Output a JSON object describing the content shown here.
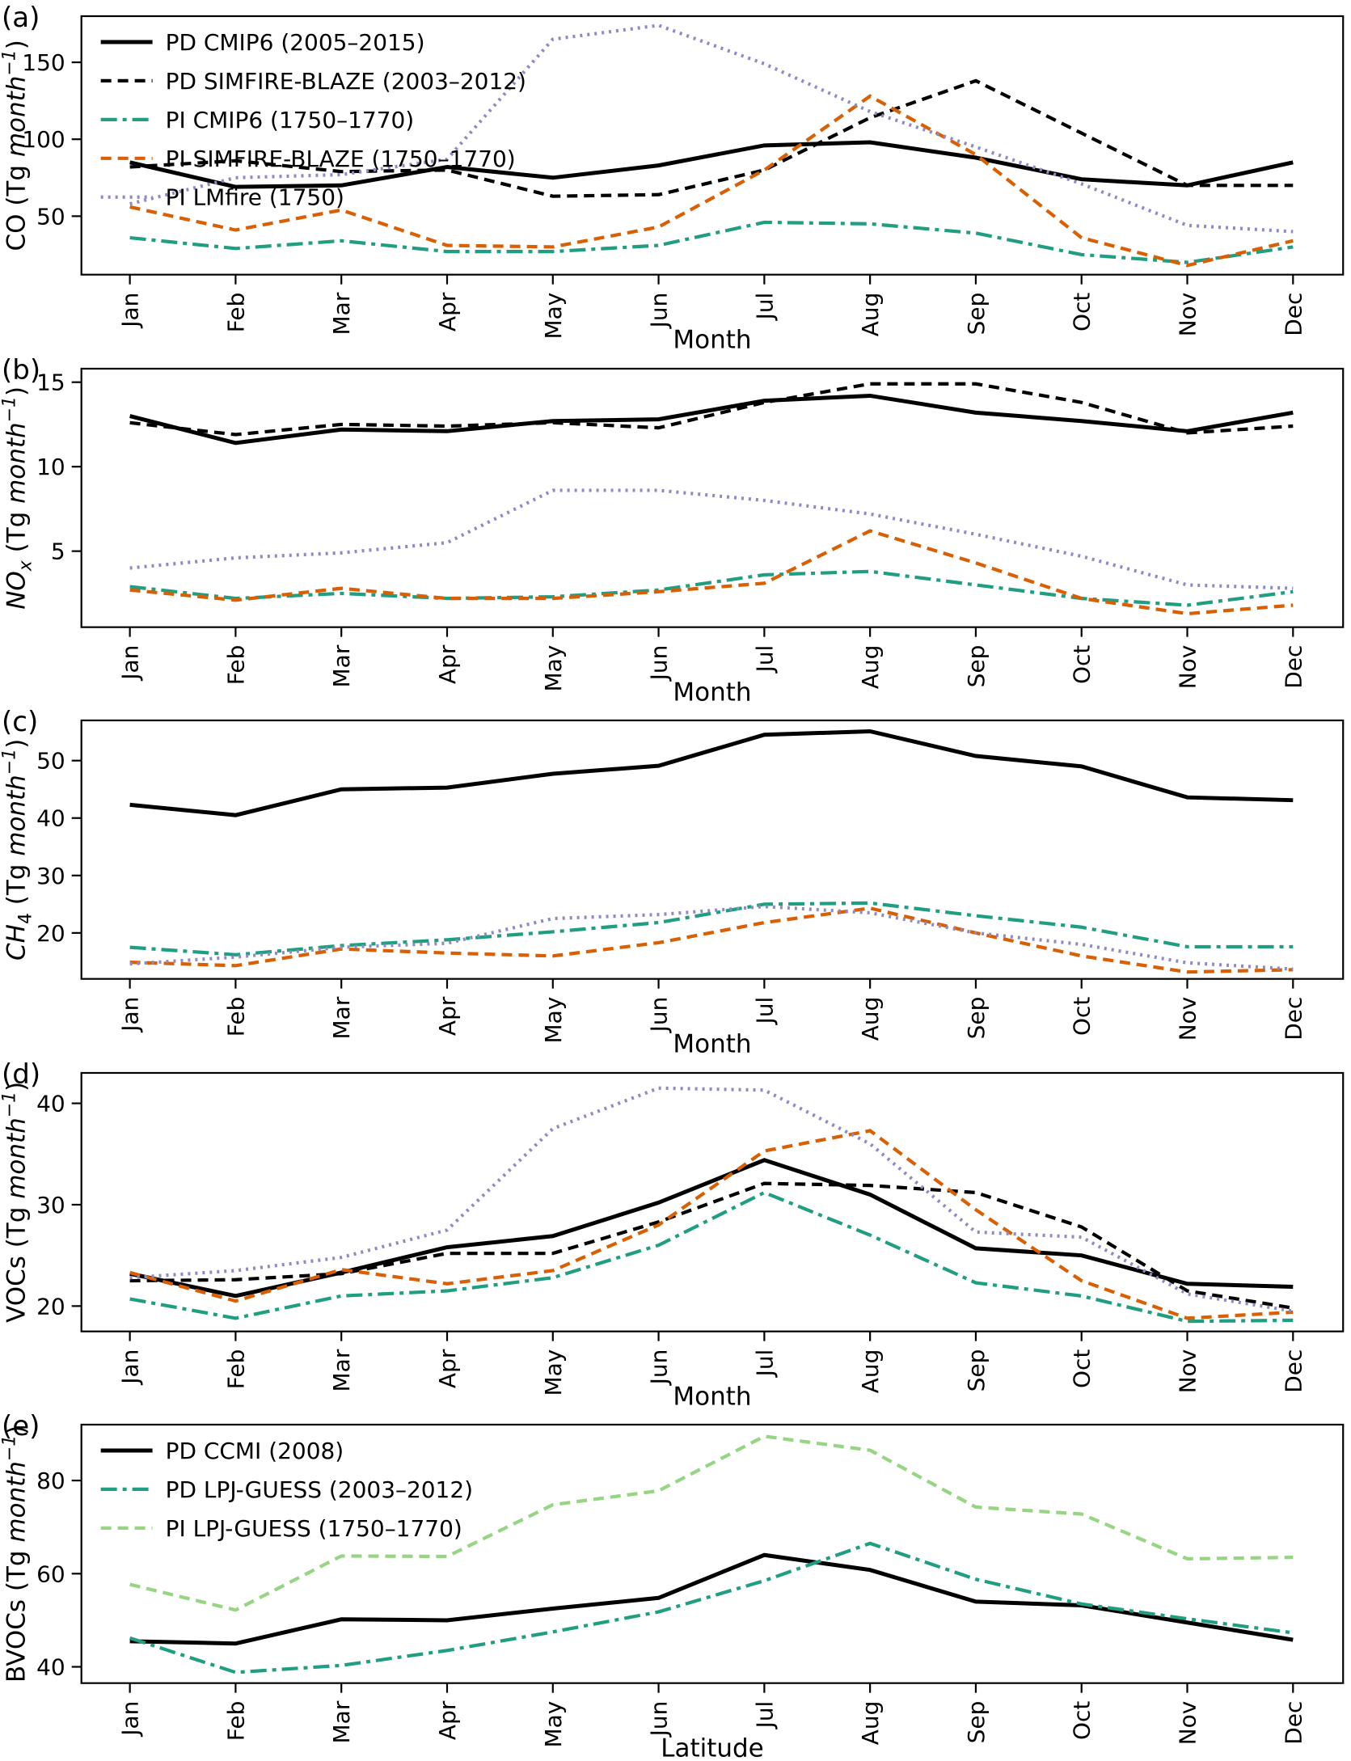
{
  "page": {
    "background": "#ffffff",
    "text_color": "#000000"
  },
  "months": [
    "Jan",
    "Feb",
    "Mar",
    "Apr",
    "May",
    "Jun",
    "Jul",
    "Aug",
    "Sep",
    "Oct",
    "Nov",
    "Dec"
  ],
  "palette": {
    "pd_solid_black": "#000000",
    "pd_dashed_black": "#000000",
    "pi_teal": "#1f9e81",
    "pi_orange": "#d95f02",
    "pi_purple": "#8f8ac6",
    "pi_lightgreen": "#97d584"
  },
  "chart_data": [
    {
      "type": "line",
      "panel_label": "(a)",
      "categories": [
        "Jan",
        "Feb",
        "Mar",
        "Apr",
        "May",
        "Jun",
        "Jul",
        "Aug",
        "Sep",
        "Oct",
        "Nov",
        "Dec"
      ],
      "xlabel": "Month",
      "ylabel": {
        "name": "CO",
        "name_italic": false,
        "sub": "",
        "sub_italic": false,
        "unit_prefix": "(Tg ",
        "unit_word": "month",
        "unit_sup": "−1",
        "unit_suffix": ")"
      },
      "ylim": [
        12,
        180
      ],
      "yticks": [
        50,
        100,
        150
      ],
      "grid": false,
      "legend": true,
      "legend_position": "upper-left",
      "series": [
        {
          "name": "PD CMIP6 (2005–2015)",
          "color": "#000000",
          "style": "solid",
          "values": [
            85,
            69,
            70,
            82,
            75,
            83,
            96,
            98,
            88,
            74,
            70,
            85
          ]
        },
        {
          "name": "PD SIMFIRE-BLAZE (2003–2012)",
          "color": "#000000",
          "style": "dashed",
          "values": [
            82,
            86,
            79,
            80,
            63,
            64,
            80,
            114,
            138,
            104,
            70,
            70
          ]
        },
        {
          "name": "PI CMIP6 (1750–1770)",
          "color": "#1f9e81",
          "style": "dashdot",
          "values": [
            36,
            29,
            34,
            27,
            27,
            31,
            46,
            45,
            39,
            25,
            20,
            30
          ]
        },
        {
          "name": "PI SIMFIRE-BLAZE (1750–1770)",
          "color": "#d95f02",
          "style": "dashed",
          "values": [
            56,
            41,
            54,
            31,
            30,
            43,
            80,
            128,
            90,
            36,
            18,
            34
          ]
        },
        {
          "name": "PI LMfire (1750)",
          "color": "#8f8ac6",
          "style": "dotted",
          "values": [
            58,
            75,
            77,
            87,
            165,
            174,
            149,
            118,
            95,
            71,
            44,
            40
          ]
        }
      ]
    },
    {
      "type": "line",
      "panel_label": "(b)",
      "categories": [
        "Jan",
        "Feb",
        "Mar",
        "Apr",
        "May",
        "Jun",
        "Jul",
        "Aug",
        "Sep",
        "Oct",
        "Nov",
        "Dec"
      ],
      "xlabel": "Month",
      "ylabel": {
        "name": "NO",
        "name_italic": true,
        "sub": "x",
        "sub_italic": true,
        "unit_prefix": "(Tg ",
        "unit_word": "month",
        "unit_sup": "−1",
        "unit_suffix": ")"
      },
      "ylim": [
        0.5,
        15.8
      ],
      "yticks": [
        5,
        10,
        15
      ],
      "grid": false,
      "legend": false,
      "series": [
        {
          "name": "PD CMIP6 (2005–2015)",
          "color": "#000000",
          "style": "solid",
          "values": [
            13.0,
            11.4,
            12.2,
            12.1,
            12.7,
            12.8,
            13.9,
            14.2,
            13.2,
            12.7,
            12.1,
            13.2
          ]
        },
        {
          "name": "PD SIMFIRE-BLAZE (2003–2012)",
          "color": "#000000",
          "style": "dashed",
          "values": [
            12.6,
            11.9,
            12.5,
            12.4,
            12.6,
            12.3,
            13.8,
            14.9,
            14.9,
            13.8,
            12.0,
            12.4
          ]
        },
        {
          "name": "PI CMIP6 (1750–1770)",
          "color": "#1f9e81",
          "style": "dashdot",
          "values": [
            2.9,
            2.2,
            2.5,
            2.2,
            2.3,
            2.7,
            3.6,
            3.8,
            3.0,
            2.2,
            1.8,
            2.6
          ]
        },
        {
          "name": "PI SIMFIRE-BLAZE (1750–1770)",
          "color": "#d95f02",
          "style": "dashed",
          "values": [
            2.7,
            2.1,
            2.8,
            2.2,
            2.2,
            2.6,
            3.1,
            6.2,
            4.3,
            2.2,
            1.3,
            1.8
          ]
        },
        {
          "name": "PI LMfire (1750)",
          "color": "#8f8ac6",
          "style": "dotted",
          "values": [
            4.0,
            4.6,
            4.9,
            5.5,
            8.6,
            8.6,
            8.0,
            7.2,
            6.0,
            4.7,
            3.0,
            2.8
          ]
        }
      ]
    },
    {
      "type": "line",
      "panel_label": "(c)",
      "categories": [
        "Jan",
        "Feb",
        "Mar",
        "Apr",
        "May",
        "Jun",
        "Jul",
        "Aug",
        "Sep",
        "Oct",
        "Nov",
        "Dec"
      ],
      "xlabel": "Month",
      "ylabel": {
        "name": "CH",
        "name_italic": true,
        "sub": "4",
        "sub_italic": false,
        "unit_prefix": "(Tg ",
        "unit_word": "month",
        "unit_sup": "−1",
        "unit_suffix": ")"
      },
      "ylim": [
        12,
        57
      ],
      "yticks": [
        20,
        30,
        40,
        50
      ],
      "grid": false,
      "legend": false,
      "series": [
        {
          "name": "PD CMIP6 (2005–2015)",
          "color": "#000000",
          "style": "solid",
          "values": [
            42.3,
            40.5,
            45.0,
            45.3,
            47.7,
            49.1,
            54.5,
            55.1,
            50.8,
            49.0,
            43.6,
            43.1
          ]
        },
        {
          "name": "PI CMIP6 (1750–1770)",
          "color": "#1f9e81",
          "style": "dashdot",
          "values": [
            17.5,
            16.2,
            17.8,
            18.8,
            20.2,
            21.8,
            25.0,
            25.2,
            23.0,
            21.0,
            17.6,
            17.6
          ]
        },
        {
          "name": "PI SIMFIRE-BLAZE (1750–1770)",
          "color": "#d95f02",
          "style": "dashed",
          "values": [
            14.9,
            14.3,
            17.2,
            16.5,
            16.0,
            18.3,
            21.8,
            24.3,
            20.0,
            16.0,
            13.2,
            13.6
          ]
        },
        {
          "name": "PI LMfire (1750)",
          "color": "#8f8ac6",
          "style": "dotted",
          "values": [
            14.6,
            15.8,
            17.5,
            18.2,
            22.5,
            23.2,
            24.6,
            23.5,
            20.0,
            18.0,
            14.8,
            13.7
          ]
        }
      ]
    },
    {
      "type": "line",
      "panel_label": "(d)",
      "categories": [
        "Jan",
        "Feb",
        "Mar",
        "Apr",
        "May",
        "Jun",
        "Jul",
        "Aug",
        "Sep",
        "Oct",
        "Nov",
        "Dec"
      ],
      "xlabel": "Month",
      "ylabel": {
        "name": "VOCs",
        "name_italic": false,
        "sub": "",
        "sub_italic": false,
        "unit_prefix": "(Tg ",
        "unit_word": "month",
        "unit_sup": "−1",
        "unit_suffix": ")"
      },
      "ylim": [
        17.5,
        43
      ],
      "yticks": [
        20,
        30,
        40
      ],
      "grid": false,
      "legend": false,
      "series": [
        {
          "name": "PD CMIP6 (2005–2015)",
          "color": "#000000",
          "style": "solid",
          "values": [
            23.2,
            21.0,
            23.3,
            25.8,
            26.9,
            30.2,
            34.4,
            31.0,
            25.7,
            25.0,
            22.2,
            21.9
          ]
        },
        {
          "name": "PD SIMFIRE-BLAZE (2003–2012)",
          "color": "#000000",
          "style": "dashed",
          "values": [
            22.5,
            22.6,
            23.2,
            25.2,
            25.2,
            28.3,
            32.1,
            31.9,
            31.2,
            27.8,
            21.5,
            19.8
          ]
        },
        {
          "name": "PI CMIP6 (1750–1770)",
          "color": "#1f9e81",
          "style": "dashdot",
          "values": [
            20.7,
            18.8,
            21.0,
            21.5,
            22.8,
            26.0,
            31.2,
            27.0,
            22.3,
            21.0,
            18.5,
            18.6
          ]
        },
        {
          "name": "PI SIMFIRE-BLAZE (1750–1770)",
          "color": "#d95f02",
          "style": "dashed",
          "values": [
            23.3,
            20.5,
            23.6,
            22.2,
            23.5,
            28.0,
            35.3,
            37.3,
            29.5,
            22.5,
            18.8,
            19.4
          ]
        },
        {
          "name": "PI LMfire (1750)",
          "color": "#8f8ac6",
          "style": "dotted",
          "values": [
            22.8,
            23.5,
            24.8,
            27.5,
            37.5,
            41.5,
            41.3,
            36.0,
            27.3,
            26.8,
            21.2,
            19.5
          ]
        }
      ]
    },
    {
      "type": "line",
      "panel_label": "(e)",
      "categories": [
        "Jan",
        "Feb",
        "Mar",
        "Apr",
        "May",
        "Jun",
        "Jul",
        "Aug",
        "Sep",
        "Oct",
        "Nov",
        "Dec"
      ],
      "xlabel": "Latitude",
      "ylabel": {
        "name": "BVOCs",
        "name_italic": false,
        "sub": "",
        "sub_italic": false,
        "unit_prefix": "(Tg ",
        "unit_word": "month",
        "unit_sup": "−1",
        "unit_suffix": ")"
      },
      "ylim": [
        36.5,
        92
      ],
      "yticks": [
        40,
        60,
        80
      ],
      "grid": false,
      "legend": true,
      "legend_position": "upper-left",
      "series": [
        {
          "name": "PD CCMI (2008)",
          "color": "#000000",
          "style": "solid",
          "values": [
            45.5,
            45.0,
            50.2,
            50.0,
            52.5,
            54.8,
            64.0,
            60.8,
            54.0,
            53.2,
            49.5,
            45.8
          ]
        },
        {
          "name": "PD LPJ-GUESS (2003–2012)",
          "color": "#1f9e81",
          "style": "dashdot",
          "values": [
            46.2,
            38.8,
            40.3,
            43.5,
            47.5,
            51.8,
            58.5,
            66.5,
            58.8,
            53.5,
            50.3,
            47.3
          ]
        },
        {
          "name": "PI LPJ-GUESS (1750–1770)",
          "color": "#97d584",
          "style": "dashed",
          "values": [
            57.7,
            52.2,
            63.8,
            63.7,
            74.8,
            77.8,
            89.5,
            86.5,
            74.3,
            72.8,
            63.2,
            63.5
          ]
        }
      ]
    }
  ]
}
